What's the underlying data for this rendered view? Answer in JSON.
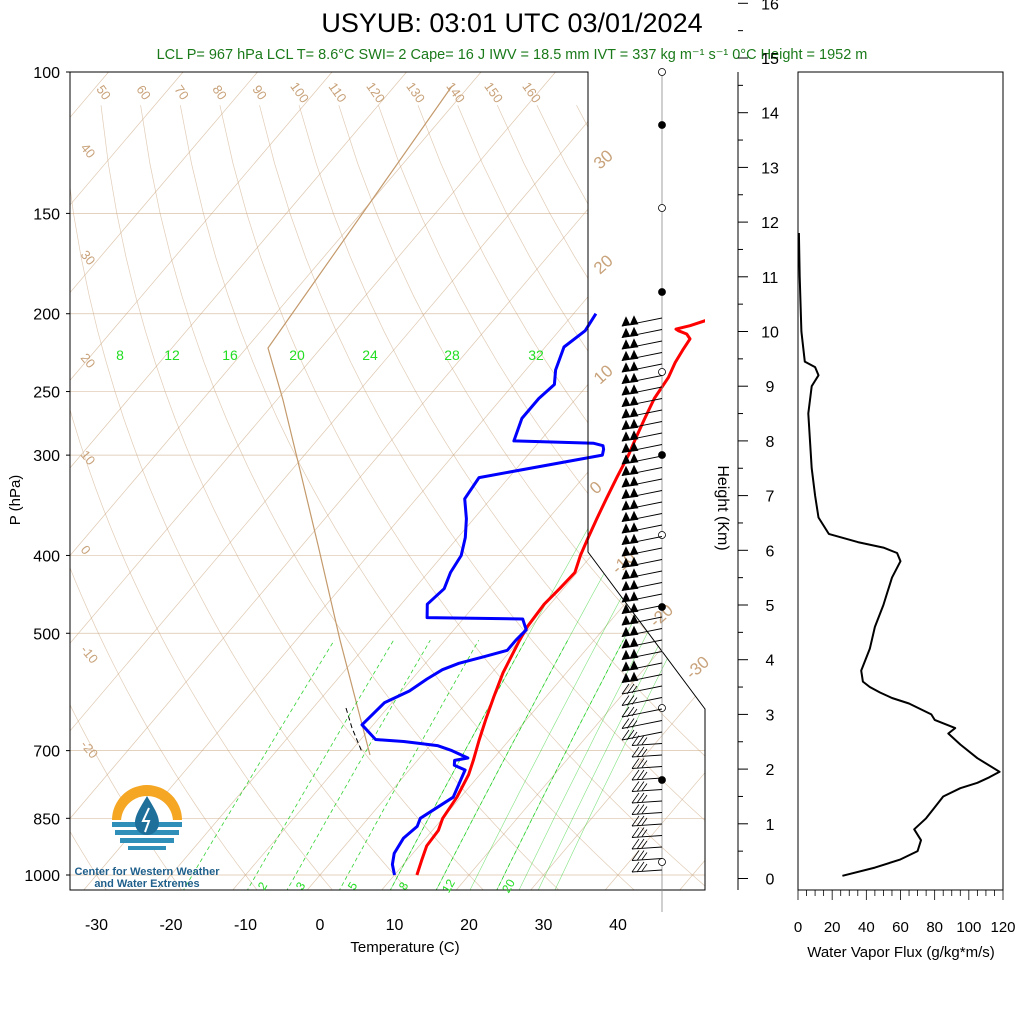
{
  "title": "USYUB: 03:01 UTC 03/01/2024",
  "subtitle": "LCL P= 967 hPa  LCL T= 8.6°C  SWI= 2  Cape= 16 J  IWV = 18.5 mm  IVT = 337 kg m⁻¹ s⁻¹  0°C Height = 1952 m",
  "logo": {
    "line1": "Center for Western Weather",
    "line2": "and Water Extremes",
    "colors": {
      "sun": "#f5a623",
      "water": "#2f8fb8",
      "drop": "#1f6f9b"
    }
  },
  "colors": {
    "temperature": "#ff0000",
    "dewpoint": "#0000ff",
    "isotherm": "#c8a27a",
    "mixing_ratio": "#00c800",
    "wind": "#000000",
    "subtitle": "#1a7a1a"
  },
  "chart_data": [
    {
      "type": "line",
      "title": "USYUB: 03:01 UTC 03/01/2024",
      "xlabel": "Temperature (C)",
      "ylabel": "P (hPa)",
      "xlim": [
        -34,
        50
      ],
      "ylim": [
        1050,
        100
      ],
      "yscale": "log",
      "x_ticks": [
        -30,
        -20,
        -10,
        0,
        10,
        20,
        30,
        40
      ],
      "y_ticks": [
        100,
        150,
        200,
        250,
        300,
        400,
        500,
        700,
        850,
        1000
      ],
      "isotherm_labels": [
        -50,
        -40,
        -30,
        -20,
        -10,
        0,
        10,
        20,
        30
      ],
      "dry_adiabat_labels": [
        50,
        60,
        70,
        80,
        90,
        100,
        110,
        120,
        130,
        140,
        150,
        160
      ],
      "mixing_ratio_labels_upper": [
        8,
        12,
        16,
        20,
        24,
        28,
        32
      ],
      "mixing_ratio_labels_lower": [
        2,
        3,
        5,
        8,
        12,
        20
      ],
      "theta_e_labels": [
        30,
        20,
        10,
        0,
        -10,
        -20,
        -30
      ],
      "series": [
        {
          "name": "Temperature",
          "x": [
            13.0,
            12.0,
            11.0,
            10.8,
            10.0,
            9.5,
            8.5,
            7.5,
            6.0,
            4.5,
            3.0,
            1.5,
            0.0,
            -0.5,
            -0.8,
            -0.5,
            -0.3,
            -1.5,
            -2.5,
            -3.5,
            -4.5,
            -5.5,
            -6.5,
            -7.5,
            -8.5,
            -9.5,
            -10.0,
            -10.8,
            -11.2,
            -11.5,
            -12.5,
            -14.0,
            -14.5,
            -13.0,
            -11.5,
            -10.5,
            -11.0
          ],
          "y": [
            1000,
            960,
            920,
            880,
            850,
            800,
            750,
            720,
            680,
            640,
            600,
            560,
            510,
            490,
            460,
            440,
            420,
            400,
            380,
            360,
            340,
            320,
            300,
            285,
            270,
            255,
            240,
            230,
            222,
            215,
            212,
            210,
            209,
            207,
            204,
            202,
            200
          ]
        },
        {
          "name": "Dewpoint",
          "x": [
            10.0,
            8.5,
            7.5,
            7.0,
            7.5,
            7.0,
            9.0,
            8.0,
            7.5,
            5.5,
            5.0,
            6.5,
            3.5,
            1.0,
            -2.0,
            -4.0,
            -6.0,
            -8.0,
            -11.5,
            -11.0,
            -9.0,
            -8.0,
            -7.0,
            -5.5,
            -3.0,
            -0.5,
            -0.5,
            -0.3,
            -2.0,
            -15.0,
            -16.5,
            -16.0,
            -17.0,
            -17.5,
            -19.0,
            -21.0,
            -23.5,
            -24.0,
            -10.0,
            -10.5,
            -11.0,
            -12.5,
            -23.5,
            -25.0,
            -25.0,
            -24.5,
            -26.0,
            -27.5,
            -26.5,
            -27.0
          ],
          "y": [
            1000,
            970,
            940,
            900,
            870,
            850,
            800,
            760,
            740,
            730,
            720,
            715,
            700,
            690,
            685,
            682,
            680,
            678,
            650,
            610,
            590,
            570,
            555,
            545,
            535,
            525,
            510,
            495,
            480,
            478,
            460,
            440,
            420,
            400,
            380,
            360,
            340,
            320,
            300,
            295,
            292,
            290,
            288,
            270,
            255,
            245,
            235,
            220,
            210,
            200
          ]
        }
      ]
    },
    {
      "type": "line",
      "title": "",
      "xlabel": "Water Vapor Flux (g/kg*m/s)",
      "ylabel": "Height (Km)",
      "xlim": [
        0,
        120
      ],
      "ylim": [
        -0.2,
        16.5
      ],
      "x_ticks": [
        0,
        20,
        40,
        60,
        80,
        100,
        120
      ],
      "y_ticks": [
        0,
        1,
        2,
        3,
        4,
        5,
        6,
        7,
        8,
        9,
        10,
        11,
        12,
        13,
        14,
        15,
        16
      ],
      "series": [
        {
          "name": "",
          "x": [
            26,
            45,
            60,
            70,
            72,
            68,
            75,
            80,
            85,
            95,
            105,
            112,
            118,
            105,
            95,
            88,
            92,
            80,
            78,
            65,
            55,
            48,
            42,
            38,
            37,
            42,
            45,
            50,
            52,
            55,
            60,
            58,
            50,
            35,
            18,
            12,
            10,
            8,
            7,
            6,
            8,
            12,
            10,
            4,
            2,
            1,
            0.5
          ],
          "y": [
            0.05,
            0.2,
            0.35,
            0.5,
            0.7,
            0.9,
            1.1,
            1.3,
            1.5,
            1.65,
            1.75,
            1.85,
            1.95,
            2.2,
            2.45,
            2.65,
            2.75,
            2.9,
            3.0,
            3.2,
            3.3,
            3.4,
            3.5,
            3.6,
            3.8,
            4.2,
            4.6,
            5.0,
            5.2,
            5.5,
            5.8,
            5.95,
            6.05,
            6.15,
            6.3,
            6.6,
            7.0,
            7.5,
            8.0,
            8.5,
            9.0,
            9.2,
            9.35,
            9.45,
            10.0,
            11.0,
            11.8
          ]
        }
      ]
    }
  ]
}
